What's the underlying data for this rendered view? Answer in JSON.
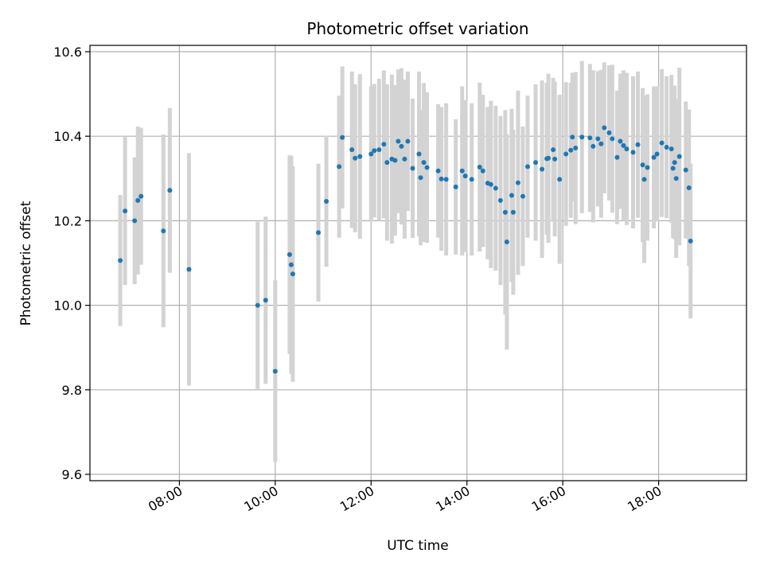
{
  "chart_data": {
    "type": "scatter",
    "title": "Photometric offset variation",
    "xlabel": "UTC time",
    "ylabel": "Photometric offset",
    "x_tick_labels": [
      "08:00",
      "10:00",
      "12:00",
      "14:00",
      "16:00",
      "18:00"
    ],
    "y_tick_labels": [
      "9.6",
      "9.8",
      "10.0",
      "10.2",
      "10.4",
      "10.6"
    ],
    "x_ticks": [
      "08:00",
      "10:00",
      "12:00",
      "14:00",
      "16:00",
      "18:00"
    ],
    "y_ticks": [
      9.6,
      9.8,
      10.0,
      10.2,
      10.4,
      10.6
    ],
    "xlim": [
      "06:08",
      "19:50"
    ],
    "ylim": [
      9.585,
      10.615
    ],
    "grid": true,
    "point_color": "#1f77b4",
    "errorbar_color": "#d3d3d3",
    "series": [
      {
        "x": [
          "06:46",
          "06:52",
          "07:04",
          "07:08",
          "07:12",
          "07:40",
          "07:48",
          "08:12",
          "09:38",
          "09:48",
          "10:00",
          "10:18",
          "10:20",
          "10:22",
          "10:54",
          "11:04",
          "11:20",
          "11:24",
          "11:36",
          "11:40",
          "11:46",
          "12:00",
          "12:04",
          "12:10",
          "12:16",
          "12:20",
          "12:26",
          "12:30",
          "12:34",
          "12:38",
          "12:42",
          "12:46",
          "12:52",
          "13:00",
          "13:02",
          "13:06",
          "13:10",
          "13:24",
          "13:28",
          "13:34",
          "13:46",
          "13:54",
          "13:58",
          "14:06",
          "14:16",
          "14:20",
          "14:26",
          "14:30",
          "14:36",
          "14:42",
          "14:48",
          "14:50",
          "14:56",
          "14:58",
          "15:04",
          "15:10",
          "15:16",
          "15:26",
          "15:34",
          "15:40",
          "15:42",
          "15:48",
          "15:50",
          "15:56",
          "16:04",
          "16:10",
          "16:12",
          "16:16",
          "16:24",
          "16:34",
          "16:38",
          "16:44",
          "16:48",
          "16:52",
          "16:58",
          "17:02",
          "17:08",
          "17:12",
          "17:16",
          "17:20",
          "17:28",
          "17:34",
          "17:40",
          "17:42",
          "17:46",
          "17:54",
          "17:58",
          "18:04",
          "18:10",
          "18:16",
          "18:18",
          "18:20",
          "18:22",
          "18:26",
          "18:34",
          "18:38",
          "18:40"
        ],
        "y": [
          10.106,
          10.223,
          10.2,
          10.248,
          10.258,
          10.176,
          10.272,
          10.085,
          10.0,
          10.012,
          9.844,
          10.12,
          10.096,
          10.074,
          10.172,
          10.246,
          10.328,
          10.397,
          10.368,
          10.348,
          10.352,
          10.358,
          10.366,
          10.368,
          10.381,
          10.338,
          10.346,
          10.343,
          10.388,
          10.376,
          10.346,
          10.388,
          10.324,
          10.358,
          10.302,
          10.338,
          10.326,
          10.318,
          10.299,
          10.298,
          10.28,
          10.318,
          10.306,
          10.298,
          10.327,
          10.318,
          10.289,
          10.286,
          10.277,
          10.248,
          10.22,
          10.15,
          10.26,
          10.22,
          10.29,
          10.258,
          10.328,
          10.338,
          10.322,
          10.347,
          10.348,
          10.368,
          10.346,
          10.298,
          10.358,
          10.367,
          10.398,
          10.372,
          10.398,
          10.396,
          10.376,
          10.394,
          10.382,
          10.42,
          10.408,
          10.394,
          10.35,
          10.388,
          10.378,
          10.37,
          10.362,
          10.38,
          10.332,
          10.298,
          10.326,
          10.35,
          10.358,
          10.384,
          10.374,
          10.37,
          10.324,
          10.338,
          10.3,
          10.352,
          10.32,
          10.278,
          10.152
        ],
        "err": [
          0.155,
          0.175,
          0.15,
          0.175,
          0.162,
          0.228,
          0.195,
          0.275,
          0.198,
          0.198,
          0.215,
          0.235,
          0.258,
          0.255,
          0.163,
          0.155,
          0.168,
          0.168,
          0.185,
          0.175,
          0.195,
          0.16,
          0.158,
          0.168,
          0.175,
          0.185,
          0.2,
          0.178,
          0.17,
          0.185,
          0.188,
          0.165,
          0.165,
          0.195,
          0.16,
          0.188,
          0.178,
          0.158,
          0.17,
          0.18,
          0.16,
          0.2,
          0.18,
          0.18,
          0.2,
          0.18,
          0.18,
          0.198,
          0.195,
          0.2,
          0.242,
          0.255,
          0.205,
          0.195,
          0.218,
          0.165,
          0.168,
          0.185,
          0.21,
          0.18,
          0.2,
          0.17,
          0.183,
          0.2,
          0.17,
          0.16,
          0.152,
          0.18,
          0.18,
          0.175,
          0.18,
          0.16,
          0.175,
          0.155,
          0.16,
          0.175,
          0.158,
          0.16,
          0.178,
          0.18,
          0.18,
          0.173,
          0.182,
          0.198,
          0.173,
          0.168,
          0.16,
          0.175,
          0.168,
          0.175,
          0.165,
          0.182,
          0.188,
          0.21,
          0.162,
          0.185,
          0.183
        ]
      }
    ]
  }
}
